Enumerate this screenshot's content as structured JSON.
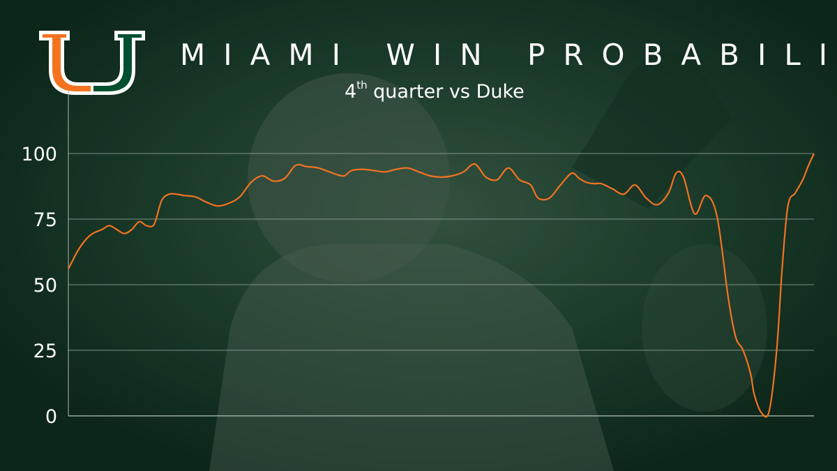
{
  "header": {
    "title": "MIAMI WIN PROBABILITY",
    "subtitle_ordinal": "4",
    "subtitle_suffix": "th",
    "subtitle_rest": " quarter vs Duke"
  },
  "logo": {
    "icon": "miami-u-logo",
    "color_left": "#f47321",
    "color_right": "#005030"
  },
  "colors": {
    "line": "#f47321",
    "background": "#0f2a1e",
    "grid": "#a9b8b0",
    "text": "#ffffff"
  },
  "chart_data": {
    "type": "line",
    "title": "MIAMI WIN PROBABILITY",
    "subtitle": "4th quarter vs Duke",
    "xlabel": "",
    "ylabel": "",
    "ylim": [
      0,
      100
    ],
    "xlim": [
      0,
      100
    ],
    "yticks": [
      0,
      25,
      50,
      75,
      100
    ],
    "grid": true,
    "legend": "none",
    "series": [
      {
        "x": [
          0,
          1.5,
          3,
          4.5,
          5.5,
          6.5,
          7.5,
          8.5,
          9.5,
          10.5,
          11.5,
          12.5,
          13.5,
          14.5,
          15.5,
          17,
          18.5,
          20,
          21.5,
          23,
          24.5,
          26,
          27.5,
          29,
          30.5,
          32,
          33.5,
          35,
          36,
          37,
          38,
          39.5,
          41,
          42.5,
          44,
          45.5,
          47,
          48.5,
          50,
          51.5,
          53,
          54.5,
          56,
          57.5,
          59,
          60.5,
          62,
          63,
          64.5,
          66,
          67.5,
          68.5,
          69.5,
          70.5,
          71.5,
          73,
          74.5,
          76,
          77.5,
          79,
          80.5,
          81.5,
          82.5,
          84,
          85.5,
          87,
          88.5,
          89.5,
          90.5,
          91.5,
          92,
          93,
          94,
          95,
          95.7,
          96.5,
          97.5,
          98.5,
          99.2,
          100
        ],
        "y": [
          56,
          64,
          69,
          71,
          72.5,
          71,
          69.5,
          71,
          74,
          72.5,
          73,
          82,
          84.5,
          84.5,
          84,
          83.5,
          81.5,
          80,
          81,
          83.5,
          89,
          91.5,
          89.5,
          90.5,
          95.5,
          95,
          94.5,
          93,
          92,
          91.5,
          93.5,
          94,
          93.5,
          93,
          94,
          94.5,
          93,
          91.5,
          91,
          91.5,
          93,
          96,
          91,
          90,
          94.5,
          90,
          88,
          83,
          83,
          88,
          92.5,
          90.5,
          89,
          88.5,
          88.5,
          86.5,
          84.5,
          88,
          83,
          80.5,
          85,
          92.5,
          91,
          77,
          84,
          76,
          45,
          30,
          25,
          16,
          8,
          1,
          2,
          25,
          55,
          80,
          85,
          90,
          95,
          100
        ]
      }
    ]
  }
}
